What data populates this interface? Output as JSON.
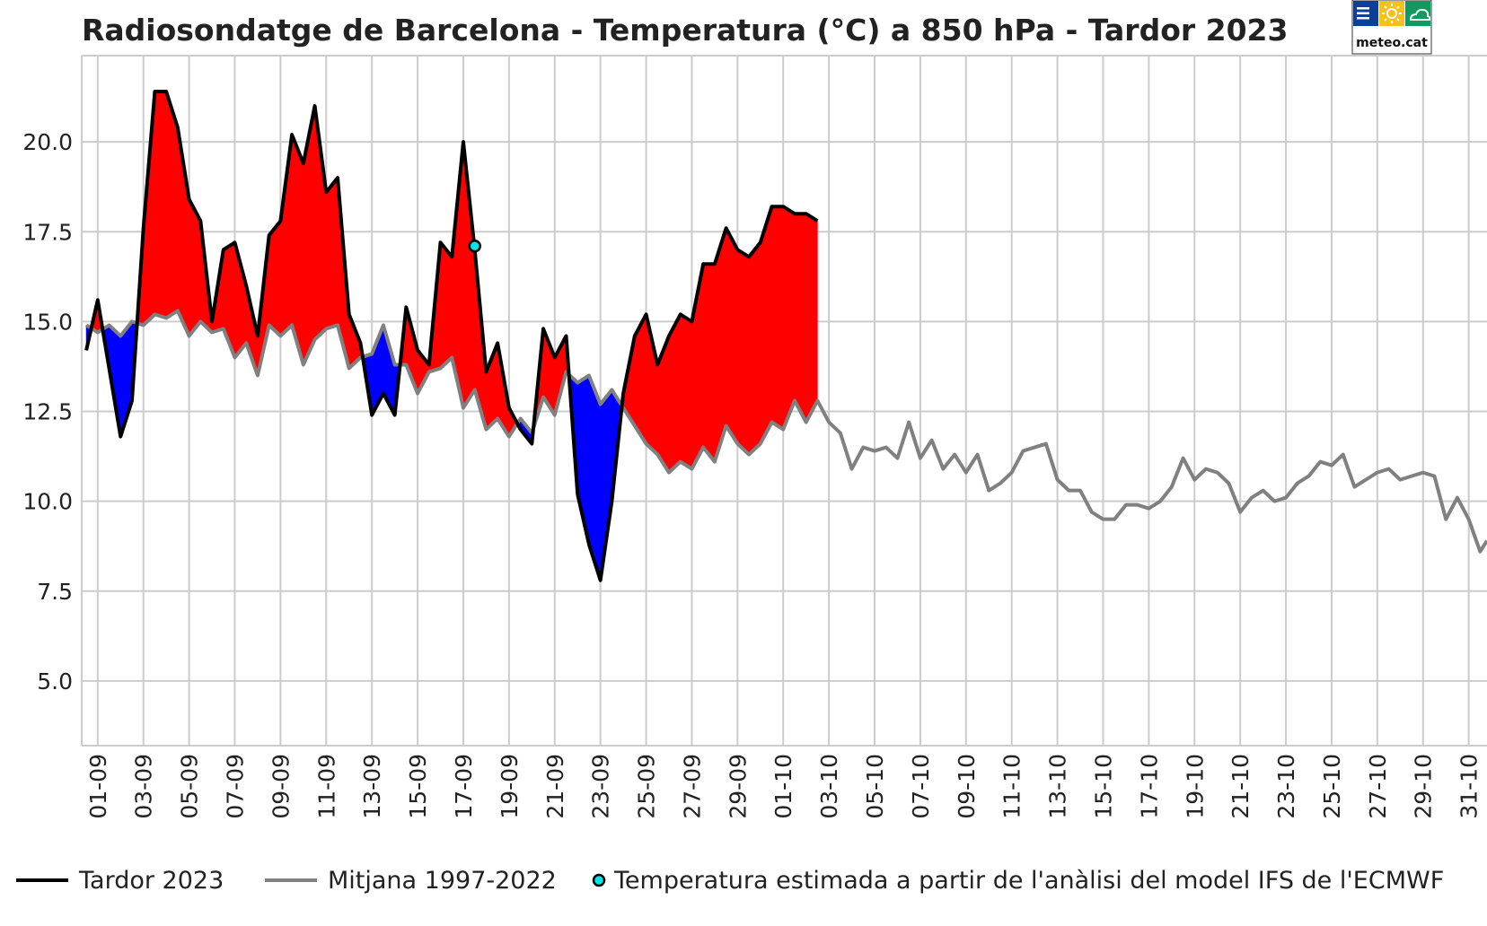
{
  "chart_data": {
    "type": "line",
    "title": "Radiosondatge de Barcelona - Temperatura (°C) a 850 hPa - Tardor 2023",
    "xlabel": "",
    "ylabel": "",
    "ylim": [
      3.2,
      22.4
    ],
    "yticks": [
      "5.0",
      "7.5",
      "10.0",
      "12.5",
      "15.0",
      "17.5",
      "20.0"
    ],
    "ytick_values": [
      5.0,
      7.5,
      10.0,
      12.5,
      15.0,
      17.5,
      20.0
    ],
    "xlim": [
      -0.7,
      60.8
    ],
    "xtick_labels": [
      "01-09",
      "03-09",
      "05-09",
      "07-09",
      "09-09",
      "11-09",
      "13-09",
      "15-09",
      "17-09",
      "19-09",
      "21-09",
      "23-09",
      "25-09",
      "27-09",
      "29-09",
      "01-10",
      "03-10",
      "05-10",
      "07-10",
      "09-10",
      "11-10",
      "13-10",
      "15-10",
      "17-10",
      "19-10",
      "21-10",
      "23-10",
      "25-10",
      "27-10",
      "29-10",
      "31-10"
    ],
    "xtick_days": [
      0,
      2,
      4,
      6,
      8,
      10,
      12,
      14,
      16,
      18,
      20,
      22,
      24,
      26,
      28,
      30,
      32,
      34,
      36,
      38,
      40,
      42,
      44,
      46,
      48,
      50,
      52,
      54,
      56,
      58,
      60
    ],
    "grid": true,
    "series": [
      {
        "name": "Tardor 2023",
        "color": "#000000",
        "x": [
          -0.5,
          0,
          0.5,
          1,
          1.5,
          2,
          2.5,
          3,
          3.5,
          4,
          4.5,
          5,
          5.5,
          6,
          6.5,
          7,
          7.5,
          8,
          8.5,
          9,
          9.5,
          10,
          10.5,
          11,
          11.5,
          12,
          12.5,
          13,
          13.5,
          14,
          14.5,
          15,
          15.5,
          16,
          16.5,
          17,
          17.5,
          18,
          18.5,
          19,
          19.5,
          20,
          20.5,
          21,
          21.5,
          22,
          22.5,
          23,
          23.5,
          24,
          24.5,
          25,
          25.5,
          26,
          26.5,
          27,
          27.5,
          28,
          28.5,
          29,
          29.5,
          30,
          30.5,
          31,
          31.5
        ],
        "values": [
          14.2,
          15.6,
          13.7,
          11.8,
          12.8,
          17.6,
          21.4,
          21.4,
          20.4,
          18.4,
          17.8,
          15.0,
          17.0,
          17.2,
          16.0,
          14.6,
          17.4,
          17.8,
          20.2,
          19.4,
          21.0,
          18.6,
          19.0,
          15.2,
          14.4,
          12.4,
          13.0,
          12.4,
          15.4,
          14.2,
          13.8,
          17.2,
          16.8,
          20.0,
          17.0,
          13.6,
          14.4,
          12.6,
          12.0,
          11.6,
          14.8,
          14.0,
          14.6,
          10.2,
          8.8,
          7.8,
          10.0,
          13.0,
          14.6,
          15.2,
          13.8,
          14.6,
          15.2,
          15.0,
          16.6,
          16.6,
          17.6,
          17.0,
          16.8,
          17.2,
          18.2,
          18.2,
          18.0,
          18.0,
          17.8
        ]
      },
      {
        "name": "Mitjana 1997-2022",
        "color": "#808080",
        "x": [
          -0.5,
          0,
          0.5,
          1,
          1.5,
          2,
          2.5,
          3,
          3.5,
          4,
          4.5,
          5,
          5.5,
          6,
          6.5,
          7,
          7.5,
          8,
          8.5,
          9,
          9.5,
          10,
          10.5,
          11,
          11.5,
          12,
          12.5,
          13,
          13.5,
          14,
          14.5,
          15,
          15.5,
          16,
          16.5,
          17,
          17.5,
          18,
          18.5,
          19,
          19.5,
          20,
          20.5,
          21,
          21.5,
          22,
          22.5,
          23,
          23.5,
          24,
          24.5,
          25,
          25.5,
          26,
          26.5,
          27,
          27.5,
          28,
          28.5,
          29,
          29.5,
          30,
          30.5,
          31,
          31.5,
          32,
          32.5,
          33,
          33.5,
          34,
          34.5,
          35,
          35.5,
          36,
          36.5,
          37,
          37.5,
          38,
          38.5,
          39,
          39.5,
          40,
          40.5,
          41,
          41.5,
          42,
          42.5,
          43,
          43.5,
          44,
          44.5,
          45,
          45.5,
          46,
          46.5,
          47,
          47.5,
          48,
          48.5,
          49,
          49.5,
          50,
          50.5,
          51,
          51.5,
          52,
          52.5,
          53,
          53.5,
          54,
          54.5,
          55,
          55.5,
          56,
          56.5,
          57,
          57.5,
          58,
          58.5,
          59,
          59.5,
          60,
          60.5,
          60.8
        ],
        "values": [
          14.9,
          14.7,
          14.9,
          14.6,
          15.0,
          14.9,
          15.2,
          15.1,
          15.3,
          14.6,
          15.0,
          14.7,
          14.8,
          14.0,
          14.4,
          13.5,
          14.9,
          14.6,
          14.9,
          13.8,
          14.5,
          14.8,
          14.9,
          13.7,
          14.0,
          14.1,
          14.9,
          13.8,
          13.8,
          13.0,
          13.6,
          13.7,
          14.0,
          12.6,
          13.1,
          12.0,
          12.3,
          11.8,
          12.3,
          11.9,
          12.9,
          12.4,
          13.6,
          13.3,
          13.5,
          12.7,
          13.1,
          12.6,
          12.1,
          11.6,
          11.3,
          10.8,
          11.1,
          10.9,
          11.5,
          11.1,
          12.1,
          11.6,
          11.3,
          11.6,
          12.2,
          12.0,
          12.8,
          12.2,
          12.8,
          12.2,
          11.9,
          10.9,
          11.5,
          11.4,
          11.5,
          11.2,
          12.2,
          11.2,
          11.7,
          10.9,
          11.3,
          10.8,
          11.3,
          10.3,
          10.5,
          10.8,
          11.4,
          11.5,
          11.6,
          10.6,
          10.3,
          10.3,
          9.7,
          9.5,
          9.5,
          9.9,
          9.9,
          9.8,
          10.0,
          10.4,
          11.2,
          10.6,
          10.9,
          10.8,
          10.5,
          9.7,
          10.1,
          10.3,
          10.0,
          10.1,
          10.5,
          10.7,
          11.1,
          11.0,
          11.3,
          10.4,
          10.6,
          10.8,
          10.9,
          10.6,
          10.7,
          10.8,
          10.7,
          9.5,
          10.1,
          9.5,
          8.6,
          8.9
        ]
      }
    ],
    "markers": [
      {
        "name": "Temperatura estimada a partir de l'anàlisi del model IFS de l'ECMWF",
        "x": 16.5,
        "y": 17.1,
        "color": "#00e5e5"
      }
    ],
    "fill": {
      "above_color": "#ff0000",
      "below_color": "#0000ff"
    },
    "legend": {
      "placement": "bottom",
      "items": [
        {
          "label": "Tardor 2023",
          "kind": "line",
          "color": "#000000"
        },
        {
          "label": "Mitjana 1997-2022",
          "kind": "line",
          "color": "#808080"
        },
        {
          "label": "Temperatura estimada a partir de l'anàlisi del model IFS de l'ECMWF",
          "kind": "marker",
          "color": "#00e5e5"
        }
      ]
    }
  },
  "logo": {
    "text": "meteo.cat",
    "colors": {
      "blue": "#0b3f9a",
      "yellow": "#f6c21a",
      "green": "#119a5e"
    }
  }
}
